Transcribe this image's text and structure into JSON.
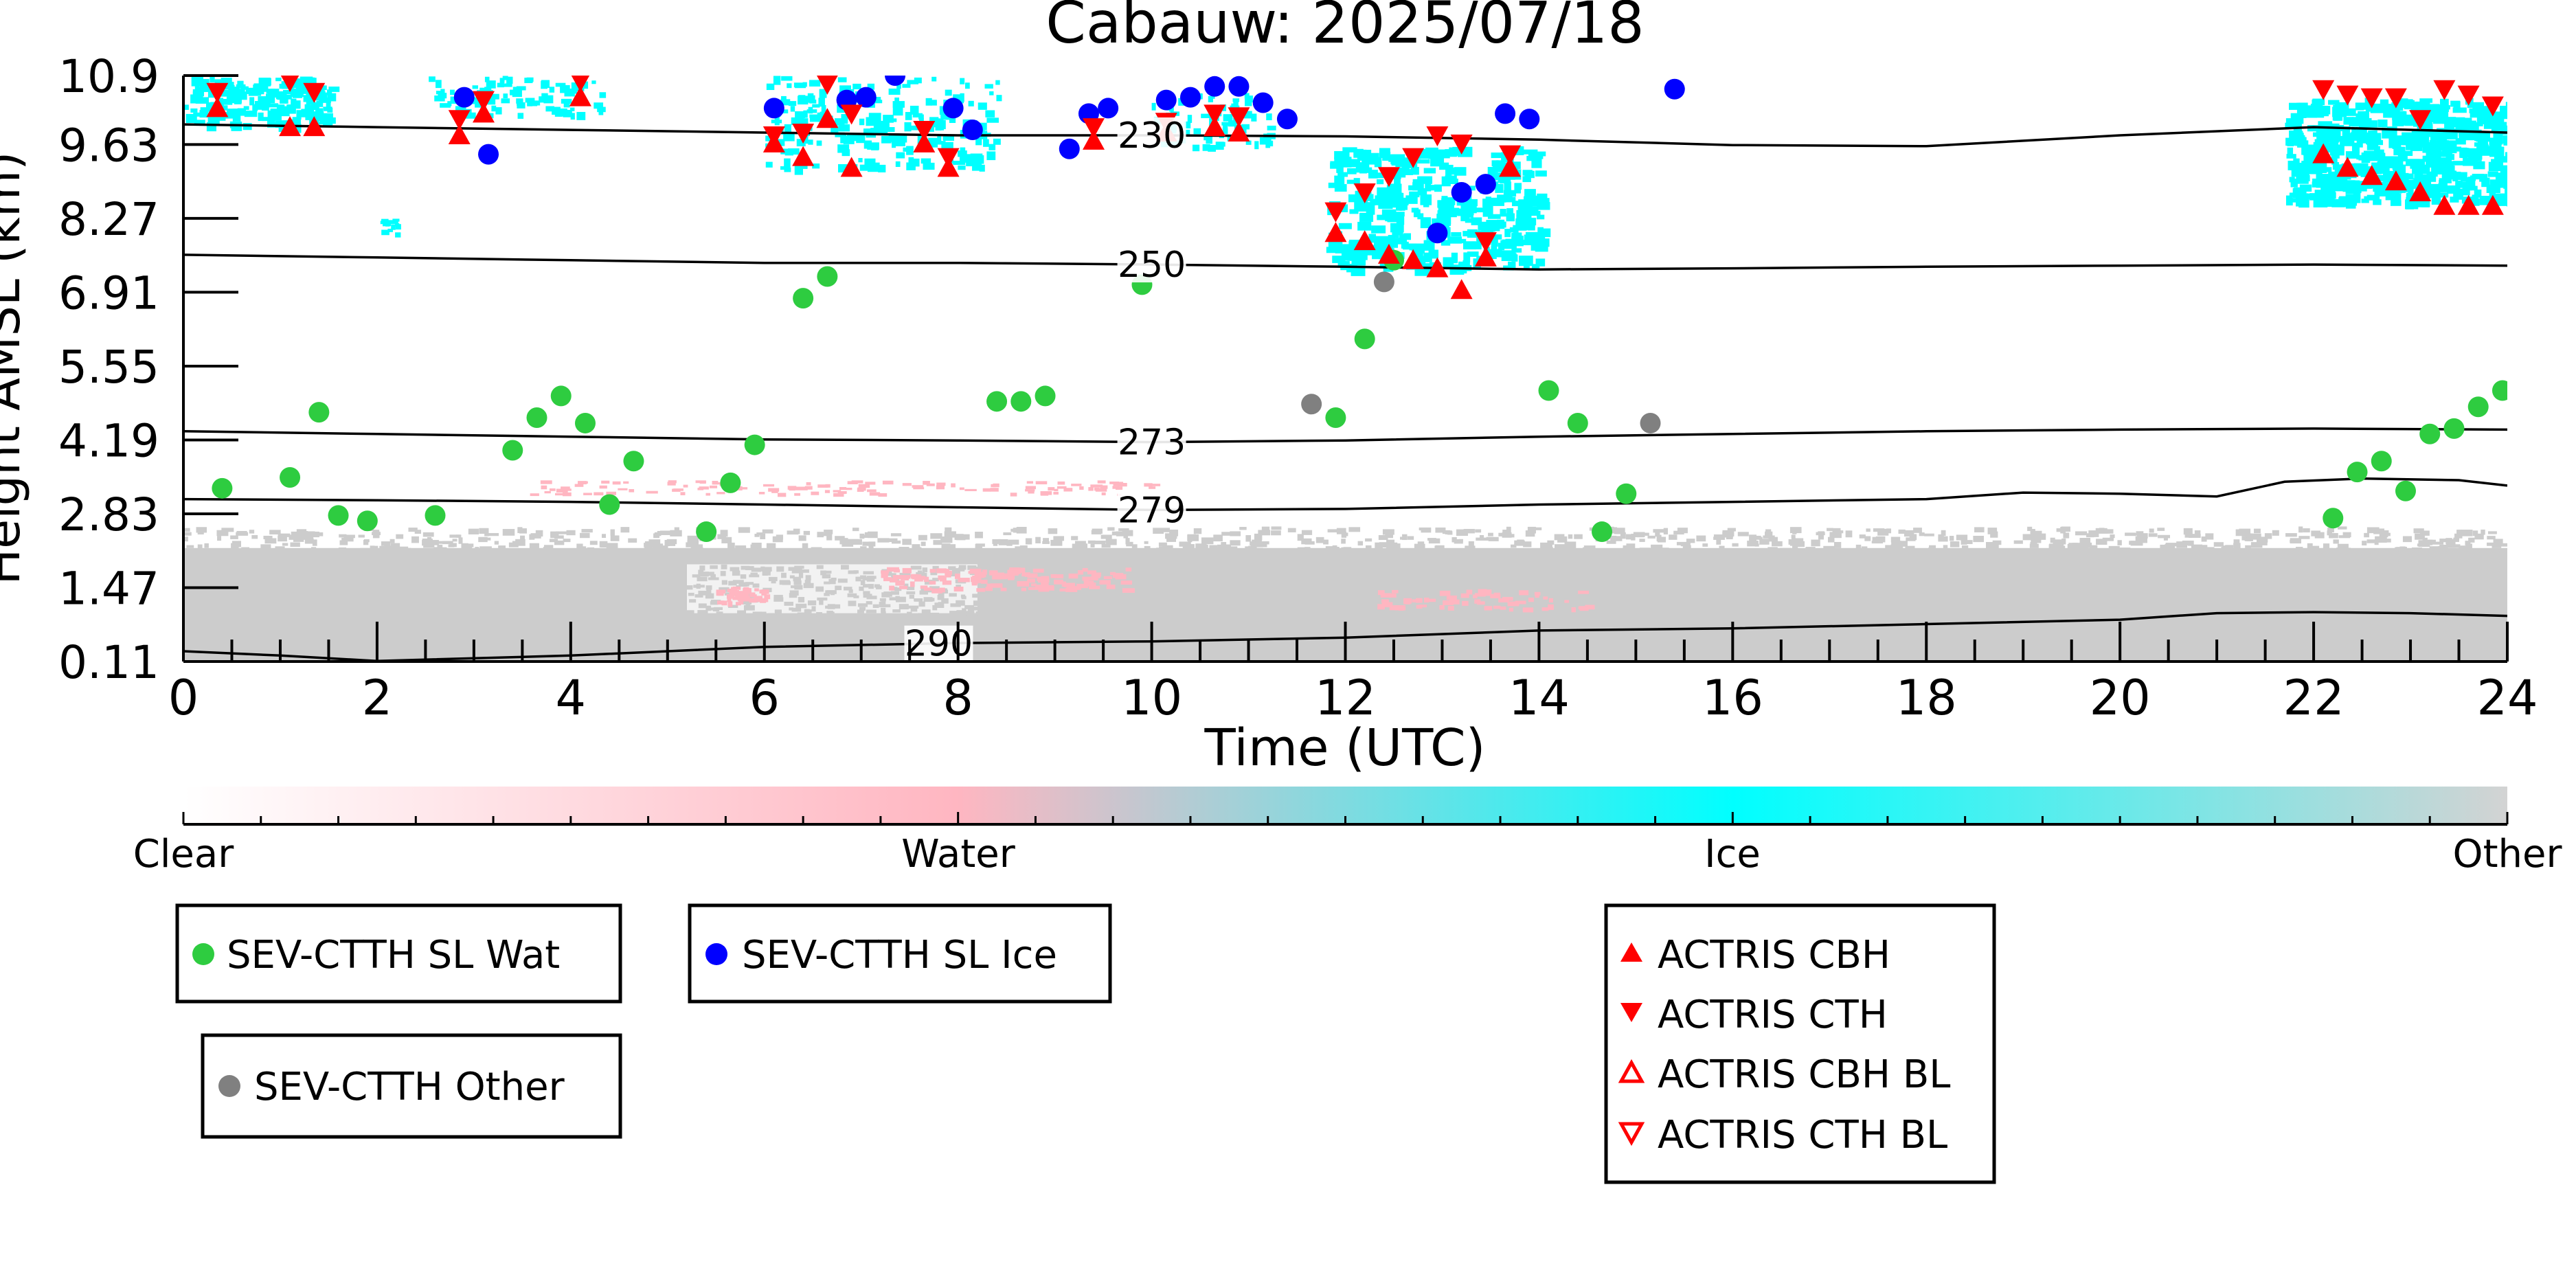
{
  "chart_data": {
    "type": "scatter",
    "title": "Cabauw: 2025/07/18",
    "xlabel": "Time (UTC)",
    "ylabel": "Height AMSL (km)",
    "xlim": [
      0,
      24
    ],
    "ylim": [
      0.11,
      10.9
    ],
    "x_ticks": [
      0,
      2,
      4,
      6,
      8,
      10,
      12,
      14,
      16,
      18,
      20,
      22,
      24
    ],
    "y_ticks": [
      "0.11",
      "1.47",
      "2.83",
      "4.19",
      "5.55",
      "6.91",
      "8.27",
      "9.63",
      "10.9"
    ],
    "y_tick_values": [
      0.11,
      1.47,
      2.83,
      4.19,
      5.55,
      6.91,
      8.27,
      9.63,
      10.9
    ],
    "colorbar": {
      "labels": [
        "Clear",
        "Water",
        "Ice",
        "Other"
      ],
      "colors": [
        "#ffffff",
        "#ffb6c1",
        "#00ffff",
        "#d3d3d3"
      ]
    },
    "colors": {
      "sev_water": "#2ecc40",
      "sev_ice": "#0000ff",
      "sev_other": "#808080",
      "actris": "#ff0000",
      "ice_cloud": "#00ffff",
      "water_cloud": "#ffb6c1",
      "other_cloud": "#cccccc",
      "contour": "#000000"
    },
    "contours": [
      {
        "label": "230",
        "label_x": 10.0,
        "points": [
          [
            0,
            10.0
          ],
          [
            2,
            9.95
          ],
          [
            4,
            9.9
          ],
          [
            6,
            9.85
          ],
          [
            8,
            9.8
          ],
          [
            10,
            9.8
          ],
          [
            12,
            9.78
          ],
          [
            14,
            9.72
          ],
          [
            16,
            9.62
          ],
          [
            18,
            9.6
          ],
          [
            20,
            9.8
          ],
          [
            22,
            9.95
          ],
          [
            24,
            9.85
          ]
        ]
      },
      {
        "label": "250",
        "label_x": 10.0,
        "points": [
          [
            0,
            7.6
          ],
          [
            2,
            7.55
          ],
          [
            4,
            7.5
          ],
          [
            6,
            7.45
          ],
          [
            8,
            7.45
          ],
          [
            10,
            7.42
          ],
          [
            12,
            7.38
          ],
          [
            14,
            7.33
          ],
          [
            16,
            7.35
          ],
          [
            18,
            7.38
          ],
          [
            20,
            7.4
          ],
          [
            22,
            7.42
          ],
          [
            24,
            7.4
          ]
        ]
      },
      {
        "label": "273",
        "label_x": 10.0,
        "points": [
          [
            0,
            4.35
          ],
          [
            2,
            4.3
          ],
          [
            4,
            4.25
          ],
          [
            6,
            4.2
          ],
          [
            8,
            4.18
          ],
          [
            10,
            4.15
          ],
          [
            12,
            4.18
          ],
          [
            14,
            4.25
          ],
          [
            16,
            4.3
          ],
          [
            18,
            4.35
          ],
          [
            20,
            4.38
          ],
          [
            22,
            4.4
          ],
          [
            24,
            4.38
          ]
        ]
      },
      {
        "label": "279",
        "label_x": 10.0,
        "points": [
          [
            0,
            3.1
          ],
          [
            2,
            3.08
          ],
          [
            4,
            3.05
          ],
          [
            6,
            3.0
          ],
          [
            8,
            2.95
          ],
          [
            10,
            2.9
          ],
          [
            12,
            2.92
          ],
          [
            14,
            3.0
          ],
          [
            16,
            3.05
          ],
          [
            18,
            3.1
          ],
          [
            19,
            3.22
          ],
          [
            20,
            3.2
          ],
          [
            21,
            3.15
          ],
          [
            21.7,
            3.42
          ],
          [
            22.5,
            3.48
          ],
          [
            23.5,
            3.45
          ],
          [
            24,
            3.35
          ]
        ]
      },
      {
        "label": "290",
        "label_x": 7.8,
        "points": [
          [
            0,
            0.3
          ],
          [
            1,
            0.22
          ],
          [
            2,
            0.12
          ],
          [
            4,
            0.22
          ],
          [
            6,
            0.38
          ],
          [
            8,
            0.45
          ],
          [
            10,
            0.48
          ],
          [
            12,
            0.55
          ],
          [
            14,
            0.68
          ],
          [
            16,
            0.72
          ],
          [
            18,
            0.8
          ],
          [
            20,
            0.88
          ],
          [
            21,
            1.0
          ],
          [
            22,
            1.02
          ],
          [
            23,
            1.0
          ],
          [
            24,
            0.95
          ]
        ]
      }
    ],
    "series": [
      {
        "name": "SEV-CTTH SL Wat",
        "marker": "circle",
        "color": "#2ecc40",
        "points": [
          [
            0.4,
            3.3
          ],
          [
            1.1,
            3.5
          ],
          [
            1.4,
            4.7
          ],
          [
            1.6,
            2.8
          ],
          [
            1.9,
            2.7
          ],
          [
            2.6,
            2.8
          ],
          [
            3.4,
            4.0
          ],
          [
            3.65,
            4.6
          ],
          [
            3.9,
            5.0
          ],
          [
            4.15,
            4.5
          ],
          [
            4.4,
            3.0
          ],
          [
            4.65,
            3.8
          ],
          [
            5.4,
            2.5
          ],
          [
            5.65,
            3.4
          ],
          [
            5.9,
            4.1
          ],
          [
            6.4,
            6.8
          ],
          [
            6.65,
            7.2
          ],
          [
            8.4,
            4.9
          ],
          [
            8.65,
            4.9
          ],
          [
            8.9,
            5.0
          ],
          [
            9.9,
            7.05
          ],
          [
            12.2,
            6.05
          ],
          [
            12.5,
            7.5
          ],
          [
            11.9,
            4.6
          ],
          [
            14.1,
            5.1
          ],
          [
            14.4,
            4.5
          ],
          [
            14.65,
            2.5
          ],
          [
            14.9,
            3.2
          ],
          [
            22.2,
            2.75
          ],
          [
            22.45,
            3.6
          ],
          [
            22.7,
            3.8
          ],
          [
            22.95,
            3.25
          ],
          [
            23.2,
            4.3
          ],
          [
            23.45,
            4.4
          ],
          [
            23.7,
            4.8
          ],
          [
            23.95,
            5.1
          ]
        ]
      },
      {
        "name": "SEV-CTTH SL Ice",
        "marker": "circle",
        "color": "#0000ff",
        "points": [
          [
            2.9,
            10.5
          ],
          [
            3.15,
            9.45
          ],
          [
            6.1,
            10.3
          ],
          [
            6.85,
            10.45
          ],
          [
            7.05,
            10.5
          ],
          [
            7.35,
            10.9
          ],
          [
            7.95,
            10.3
          ],
          [
            8.15,
            9.9
          ],
          [
            9.15,
            9.55
          ],
          [
            9.35,
            10.2
          ],
          [
            9.55,
            10.3
          ],
          [
            10.15,
            10.45
          ],
          [
            10.4,
            10.5
          ],
          [
            10.65,
            10.7
          ],
          [
            10.9,
            10.7
          ],
          [
            11.15,
            10.4
          ],
          [
            11.4,
            10.1
          ],
          [
            12.95,
            8.0
          ],
          [
            13.2,
            8.75
          ],
          [
            13.45,
            8.9
          ],
          [
            13.65,
            10.2
          ],
          [
            13.9,
            10.1
          ],
          [
            15.4,
            10.65
          ]
        ]
      },
      {
        "name": "SEV-CTTH Other",
        "marker": "circle",
        "color": "#808080",
        "points": [
          [
            11.65,
            4.85
          ],
          [
            12.4,
            7.1
          ],
          [
            15.15,
            4.5
          ]
        ]
      },
      {
        "name": "ACTRIS CBH",
        "marker": "triangle-up",
        "color": "#ff0000",
        "points": [
          [
            0.35,
            10.3
          ],
          [
            1.1,
            9.95
          ],
          [
            1.35,
            9.95
          ],
          [
            2.85,
            9.8
          ],
          [
            3.1,
            10.2
          ],
          [
            4.1,
            10.5
          ],
          [
            6.1,
            9.65
          ],
          [
            6.4,
            9.4
          ],
          [
            6.65,
            10.1
          ],
          [
            6.9,
            9.2
          ],
          [
            7.65,
            9.65
          ],
          [
            7.9,
            9.2
          ],
          [
            9.4,
            9.7
          ],
          [
            10.15,
            9.85
          ],
          [
            10.65,
            9.95
          ],
          [
            10.9,
            9.85
          ],
          [
            11.9,
            8.0
          ],
          [
            12.2,
            7.85
          ],
          [
            12.45,
            7.6
          ],
          [
            12.7,
            7.5
          ],
          [
            12.95,
            7.35
          ],
          [
            13.2,
            6.95
          ],
          [
            13.45,
            7.55
          ],
          [
            13.7,
            9.2
          ],
          [
            22.1,
            9.45
          ],
          [
            22.35,
            9.2
          ],
          [
            22.6,
            9.05
          ],
          [
            22.85,
            8.95
          ],
          [
            23.1,
            8.75
          ],
          [
            23.35,
            8.5
          ],
          [
            23.6,
            8.5
          ],
          [
            23.85,
            8.5
          ]
        ]
      },
      {
        "name": "ACTRIS CTH",
        "marker": "triangle-down",
        "color": "#ff0000",
        "points": [
          [
            0.35,
            10.6
          ],
          [
            1.1,
            10.8
          ],
          [
            1.35,
            10.6
          ],
          [
            2.85,
            10.1
          ],
          [
            3.1,
            10.45
          ],
          [
            4.1,
            10.8
          ],
          [
            6.1,
            9.8
          ],
          [
            6.4,
            9.85
          ],
          [
            6.65,
            10.75
          ],
          [
            6.9,
            10.2
          ],
          [
            7.65,
            9.9
          ],
          [
            7.9,
            9.4
          ],
          [
            9.4,
            9.95
          ],
          [
            10.15,
            10.05
          ],
          [
            10.65,
            10.2
          ],
          [
            10.9,
            10.15
          ],
          [
            11.9,
            8.4
          ],
          [
            12.2,
            8.75
          ],
          [
            12.45,
            9.05
          ],
          [
            12.7,
            9.4
          ],
          [
            12.95,
            9.8
          ],
          [
            13.2,
            9.65
          ],
          [
            13.45,
            7.85
          ],
          [
            13.7,
            9.45
          ],
          [
            22.1,
            10.65
          ],
          [
            22.35,
            10.55
          ],
          [
            22.6,
            10.5
          ],
          [
            22.85,
            10.5
          ],
          [
            23.1,
            10.1
          ],
          [
            23.35,
            10.65
          ],
          [
            23.6,
            10.55
          ],
          [
            23.85,
            10.35
          ]
        ]
      }
    ]
  },
  "legend": {
    "sev_wat": "SEV-CTTH SL Wat",
    "sev_ice": "SEV-CTTH SL Ice",
    "sev_other": "SEV-CTTH Other",
    "actris_cbh": "ACTRIS CBH",
    "actris_cth": "ACTRIS CTH",
    "actris_cbh_bl": "ACTRIS CBH BL",
    "actris_cth_bl": "ACTRIS CTH BL"
  }
}
